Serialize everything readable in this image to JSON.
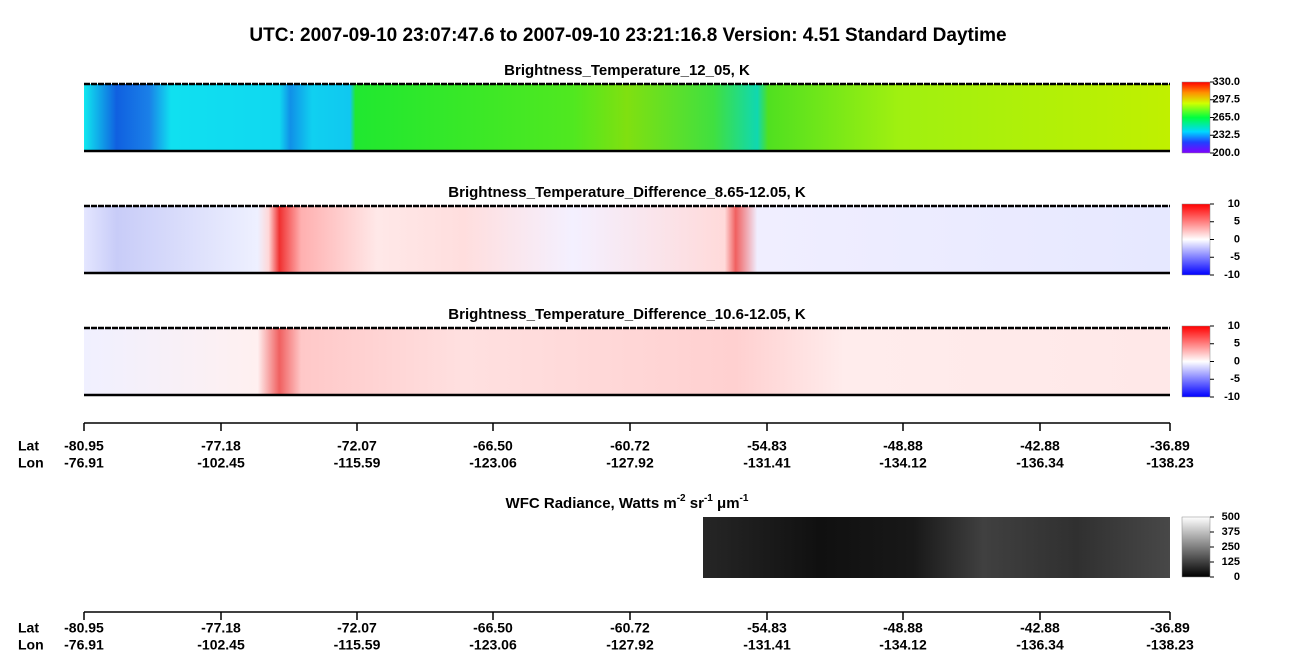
{
  "title": "UTC:  2007-09-10   23:07:47.6  to  2007-09-10   23:21:16.8    Version: 4.51  Standard Daytime",
  "chart_data": [
    {
      "type": "heatmap",
      "title": "Brightness_Temperature_12_05, K",
      "colormap": "rainbow",
      "colorbar_lim": [
        200,
        330
      ],
      "colorbar_ticks": [
        {
          "value": 200,
          "label": "200.0"
        },
        {
          "value": 232.5,
          "label": "232.5"
        },
        {
          "value": 265,
          "label": "265.0"
        },
        {
          "value": 297.5,
          "label": "297.5"
        },
        {
          "value": 330,
          "label": "330.0"
        }
      ]
    },
    {
      "type": "heatmap",
      "title": "Brightness_Temperature_Difference_8.65-12.05, K",
      "colormap": "bwr",
      "colorbar_lim": [
        -10,
        10
      ],
      "colorbar_ticks": [
        -10,
        -5,
        0,
        5,
        10
      ]
    },
    {
      "type": "heatmap",
      "title": "Brightness_Temperature_Difference_10.6-12.05, K",
      "colormap": "bwr",
      "colorbar_lim": [
        -10,
        10
      ],
      "colorbar_ticks": [
        -10,
        -5,
        0,
        5,
        10
      ]
    },
    {
      "type": "heatmap",
      "title_parts": [
        "WFC Radiance, Watts m",
        "-2",
        " sr",
        "-1",
        " μm",
        "-1"
      ],
      "colormap": "gray",
      "colorbar_lim": [
        0,
        500
      ],
      "colorbar_ticks": [
        0,
        125,
        250,
        375,
        500
      ]
    }
  ],
  "axes": [
    {
      "lat_label": "Lat",
      "lon_label": "Lon",
      "lat": [
        "-80.95",
        "-77.18",
        "-72.07",
        "-66.50",
        "-60.72",
        "-54.83",
        "-48.88",
        "-42.88",
        "-36.89"
      ],
      "lon": [
        "-76.91",
        "-102.45",
        "-115.59",
        "-123.06",
        "-127.92",
        "-131.41",
        "-134.12",
        "-136.34",
        "-138.23"
      ]
    },
    {
      "lat_label": "Lat",
      "lon_label": "Lon",
      "lat": [
        "-80.95",
        "-77.18",
        "-72.07",
        "-66.50",
        "-60.72",
        "-54.83",
        "-48.88",
        "-42.88",
        "-36.89"
      ],
      "lon": [
        "-76.91",
        "-102.45",
        "-115.59",
        "-123.06",
        "-127.92",
        "-131.41",
        "-134.12",
        "-136.34",
        "-138.23"
      ]
    }
  ]
}
